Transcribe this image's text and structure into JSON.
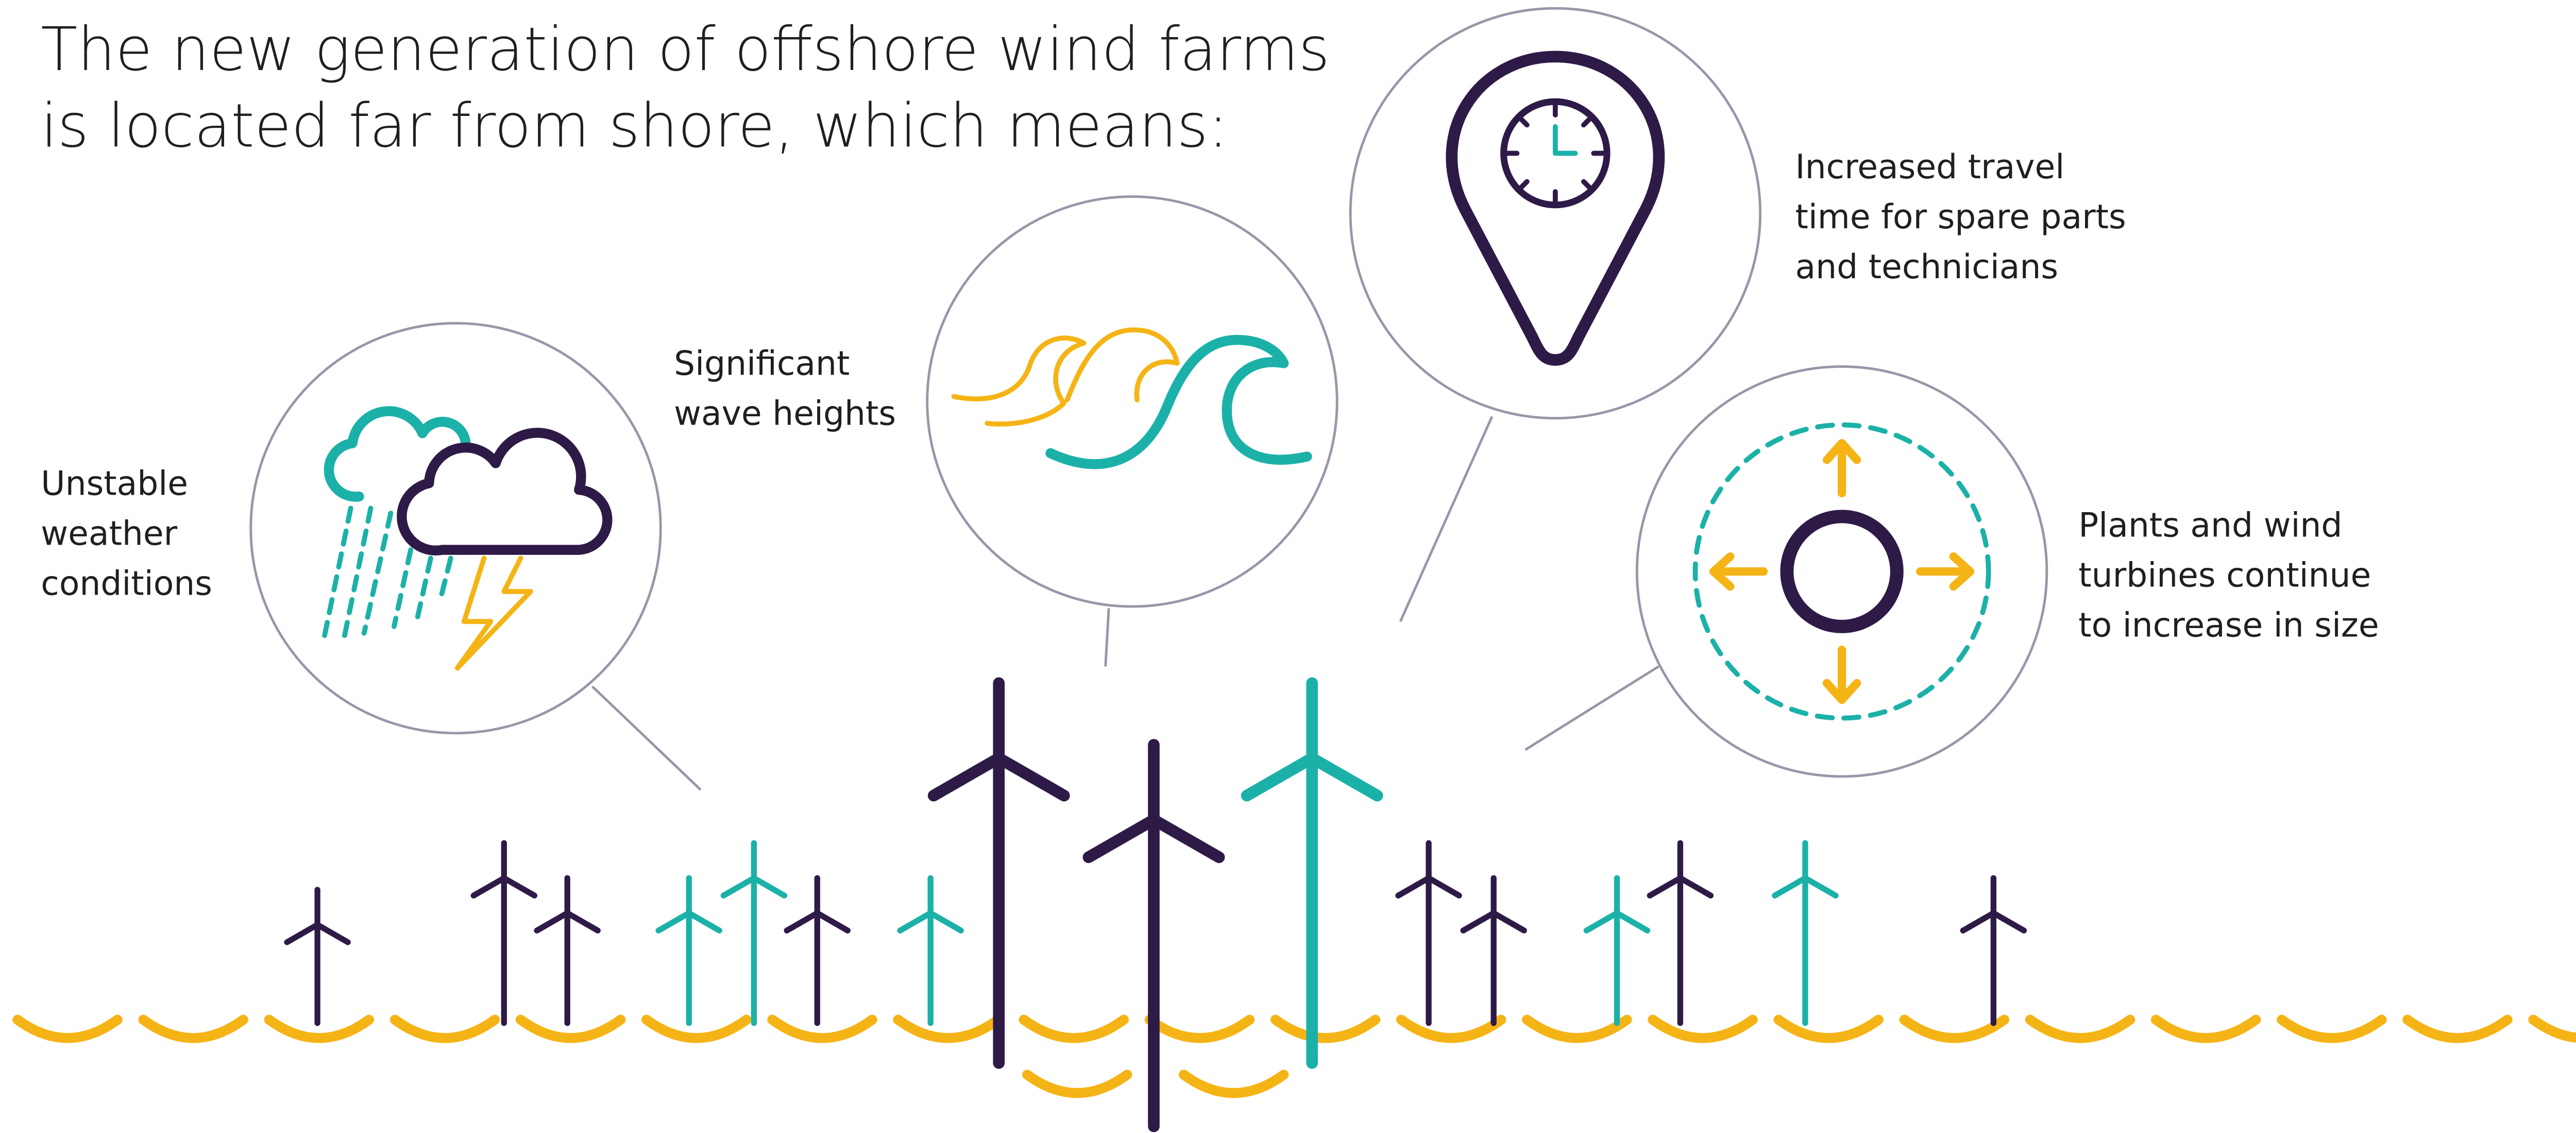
{
  "title": {
    "lines": [
      "The new generation of offshore wind farms",
      "is located far from shore, which means:"
    ]
  },
  "callouts": [
    {
      "lines": [
        "Unstable",
        "weather",
        "conditions"
      ]
    },
    {
      "lines": [
        "Significant",
        "wave heights"
      ]
    },
    {
      "lines": [
        "Increased travel",
        "time for spare parts",
        "and technicians"
      ]
    },
    {
      "lines": [
        "Plants and wind",
        "turbines continue",
        "to increase in size"
      ]
    }
  ]
}
